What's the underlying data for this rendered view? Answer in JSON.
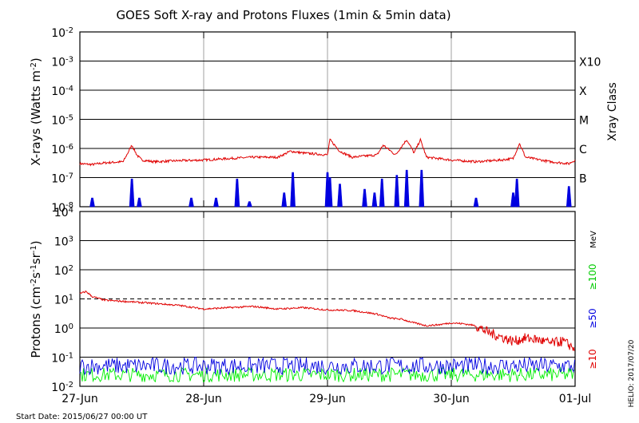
{
  "title": "GOES Soft X-ray and Protons Fluxes   (1min & 5min data)",
  "start_date": "Start Date: 2015/06/27 00:00 UT",
  "credit": "HELIO: 2017/07/20",
  "colors": {
    "xray_long": "#e00000",
    "xray_short": "#0000e0",
    "proton_10": "#e00000",
    "proton_50": "#0000e0",
    "proton_100": "#00ee00",
    "grid": "#000000",
    "day_line": "#a0a0a0"
  },
  "chart_data": [
    {
      "type": "line",
      "panel": "xray",
      "ylabel": "X-rays (Watts m^-2)",
      "ylabel_right": "Xray Class",
      "scale": "log",
      "ylim": [
        1e-08,
        0.01
      ],
      "yticks": [
        {
          "base": "10",
          "exp": "-2"
        },
        {
          "base": "10",
          "exp": "-3"
        },
        {
          "base": "10",
          "exp": "-4"
        },
        {
          "base": "10",
          "exp": "-5"
        },
        {
          "base": "10",
          "exp": "-6"
        },
        {
          "base": "10",
          "exp": "-7"
        },
        {
          "base": "10",
          "exp": "-8"
        }
      ],
      "ytick_values": [
        0.01,
        0.001,
        0.0001,
        1e-05,
        1e-06,
        1e-07,
        1e-08
      ],
      "class_labels": [
        {
          "label": "X10",
          "value": 0.001
        },
        {
          "label": "X",
          "value": 0.0001
        },
        {
          "label": "M",
          "value": 1e-05
        },
        {
          "label": "C",
          "value": 1e-06
        },
        {
          "label": "B",
          "value": 1e-07
        }
      ],
      "gridlines": [
        0.001,
        0.0001,
        1e-05,
        1e-06,
        1e-07
      ],
      "x_range_days": [
        27,
        31
      ],
      "series": [
        {
          "key": "long",
          "x": [
            27.0,
            27.1,
            27.2,
            27.35,
            27.42,
            27.46,
            27.5,
            27.6,
            27.8,
            28.0,
            28.2,
            28.4,
            28.6,
            28.7,
            28.8,
            29.0,
            29.02,
            29.1,
            29.2,
            29.4,
            29.45,
            29.55,
            29.6,
            29.64,
            29.7,
            29.75,
            29.8,
            30.0,
            30.2,
            30.4,
            30.5,
            30.55,
            30.6,
            30.8,
            30.95,
            31.0
          ],
          "values": [
            3e-07,
            2.8e-07,
            3.2e-07,
            3.5e-07,
            1.3e-06,
            6e-07,
            4e-07,
            3.5e-07,
            3.8e-07,
            4e-07,
            4.5e-07,
            5e-07,
            5e-07,
            8e-07,
            7e-07,
            6e-07,
            2e-06,
            8e-07,
            5e-07,
            6e-07,
            1.3e-06,
            6e-07,
            1.2e-06,
            2e-06,
            7e-07,
            2e-06,
            5e-07,
            4e-07,
            3.5e-07,
            4e-07,
            4.5e-07,
            1.5e-06,
            5e-07,
            3.5e-07,
            3e-07,
            4e-07
          ]
        },
        {
          "key": "short",
          "spikes": [
            {
              "x": 27.1,
              "value": 2e-08
            },
            {
              "x": 27.42,
              "value": 9e-08
            },
            {
              "x": 27.48,
              "value": 2e-08
            },
            {
              "x": 27.9,
              "value": 2e-08
            },
            {
              "x": 28.1,
              "value": 2e-08
            },
            {
              "x": 28.27,
              "value": 9e-08
            },
            {
              "x": 28.37,
              "value": 1.5e-08
            },
            {
              "x": 28.65,
              "value": 3e-08
            },
            {
              "x": 28.72,
              "value": 1.5e-07
            },
            {
              "x": 29.0,
              "value": 1.5e-07
            },
            {
              "x": 29.02,
              "value": 1e-07
            },
            {
              "x": 29.1,
              "value": 6e-08
            },
            {
              "x": 29.3,
              "value": 4e-08
            },
            {
              "x": 29.38,
              "value": 3e-08
            },
            {
              "x": 29.44,
              "value": 9e-08
            },
            {
              "x": 29.56,
              "value": 1.2e-07
            },
            {
              "x": 29.64,
              "value": 1.8e-07
            },
            {
              "x": 29.76,
              "value": 1.8e-07
            },
            {
              "x": 30.2,
              "value": 2e-08
            },
            {
              "x": 30.5,
              "value": 3e-08
            },
            {
              "x": 30.53,
              "value": 9e-08
            },
            {
              "x": 30.95,
              "value": 5e-08
            }
          ]
        }
      ]
    },
    {
      "type": "line",
      "panel": "protons",
      "ylabel": "Protons (cm^-2 s^-1 sr^-1)",
      "unit_label": "MeV",
      "scale": "log",
      "ylim": [
        0.01,
        10000
      ],
      "yticks": [
        {
          "base": "10",
          "exp": "4"
        },
        {
          "base": "10",
          "exp": "3"
        },
        {
          "base": "10",
          "exp": "2"
        },
        {
          "base": "10",
          "exp": "1"
        },
        {
          "base": "10",
          "exp": "0"
        },
        {
          "base": "10",
          "exp": "-1"
        },
        {
          "base": "10",
          "exp": "-2"
        }
      ],
      "ytick_values": [
        10000,
        1000,
        100,
        10,
        1,
        0.1,
        0.01
      ],
      "gridlines": [
        1000,
        100,
        1,
        0.1
      ],
      "threshold_dashed": 10,
      "x_range_days": [
        27,
        31
      ],
      "xticks": [
        "27-Jun",
        "28-Jun",
        "29-Jun",
        "30-Jun",
        "01-Jul"
      ],
      "series": [
        {
          "key": "p10",
          "name": "≥10",
          "x": [
            27.0,
            27.05,
            27.1,
            27.2,
            27.4,
            27.6,
            27.8,
            28.0,
            28.2,
            28.4,
            28.6,
            28.8,
            29.0,
            29.2,
            29.3,
            29.4,
            29.5,
            29.6,
            29.7,
            29.8,
            29.9,
            30.0,
            30.1,
            30.2,
            30.3,
            30.4,
            30.5,
            30.6,
            30.7,
            30.8,
            30.9,
            31.0
          ],
          "values": [
            15,
            18,
            12,
            9,
            8,
            7,
            6,
            4.5,
            5,
            5.5,
            4.5,
            5,
            4.2,
            4,
            3.5,
            3,
            2.2,
            2,
            1.5,
            1.2,
            1.3,
            1.5,
            1.4,
            1.2,
            0.7,
            0.5,
            0.35,
            0.45,
            0.4,
            0.3,
            0.35,
            0.2
          ]
        },
        {
          "key": "p50",
          "name": "≥50",
          "mean": 0.05,
          "spread": 0.6
        },
        {
          "key": "p100",
          "name": "≥100",
          "mean": 0.025,
          "spread": 0.5
        }
      ]
    }
  ]
}
